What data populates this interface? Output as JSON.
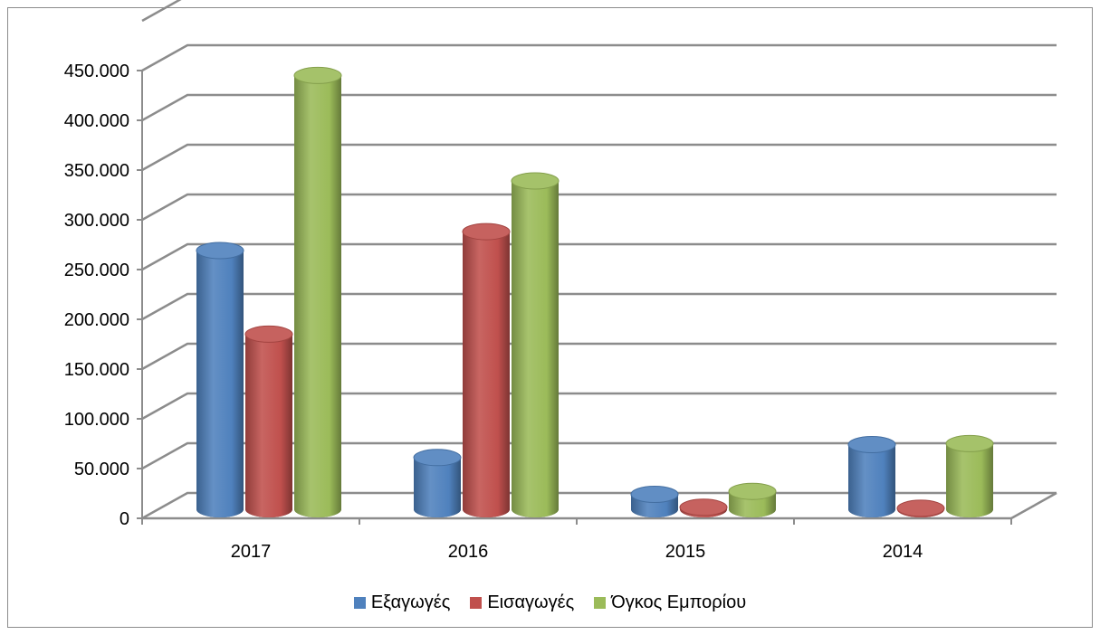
{
  "chart_data": {
    "type": "bar",
    "categories": [
      "2017",
      "2016",
      "2015",
      "2014"
    ],
    "series": [
      {
        "name": "Εξαγωγές",
        "color": "#4f81bd",
        "values": [
          260000,
          52000,
          15000,
          65000
        ]
      },
      {
        "name": "Εισαγωγές",
        "color": "#c0504d",
        "values": [
          176000,
          279000,
          2000,
          1000
        ]
      },
      {
        "name": "Όγκος Εμπορίου",
        "color": "#9bbb59",
        "values": [
          436000,
          330000,
          18000,
          66000
        ]
      }
    ],
    "yticks": [
      "0",
      "50.000",
      "100.000",
      "150.000",
      "200.000",
      "250.000",
      "300.000",
      "350.000",
      "400.000",
      "450.000"
    ],
    "ylim": [
      0,
      450000
    ],
    "grid": true,
    "legend_position": "bottom"
  }
}
